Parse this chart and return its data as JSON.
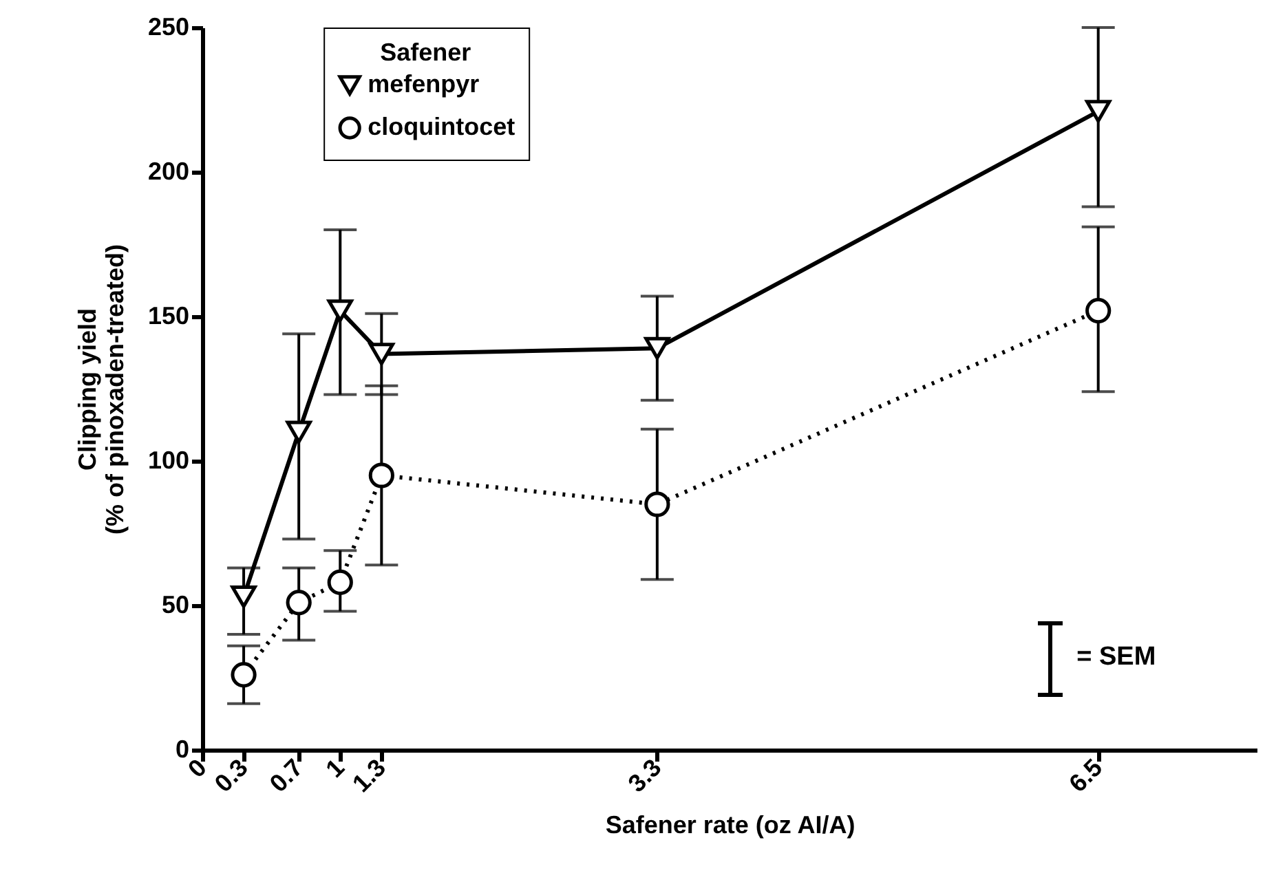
{
  "chart_data": {
    "type": "line",
    "xlabel": "Safener rate (oz AI/A)",
    "ylabel": "Clipping yield\n(% of pinoxaden-treated)",
    "legend_title": "Safener",
    "x": [
      0.3,
      0.7,
      1,
      1.3,
      3.3,
      6.5
    ],
    "series": [
      {
        "name": "mefenpyr",
        "color": "#000000",
        "marker": "triangle",
        "line_style": "solid",
        "values": [
          53,
          110,
          152,
          137,
          139,
          221
        ],
        "errors": [
          [
            40,
            63
          ],
          [
            73,
            144
          ],
          [
            123,
            180
          ],
          [
            123,
            151
          ],
          [
            121,
            157
          ],
          [
            188,
            250
          ]
        ]
      },
      {
        "name": "cloquintocet",
        "color": "#000000",
        "marker": "circle",
        "line_style": "dotted",
        "values": [
          26,
          51,
          58,
          95,
          85,
          152
        ],
        "errors": [
          [
            16,
            36
          ],
          [
            38,
            63
          ],
          [
            48,
            69
          ],
          [
            64,
            126
          ],
          [
            59,
            111
          ],
          [
            124,
            181
          ]
        ]
      }
    ],
    "xlim": [
      0,
      7.65
    ],
    "xticks": [
      0,
      0.3,
      0.7,
      1,
      1.3,
      3.3,
      6.5
    ],
    "ylim": [
      0,
      250
    ],
    "yticks": [
      0,
      50,
      100,
      150,
      200,
      250
    ],
    "grid": false,
    "legend": "top left",
    "annotations": [
      "= SEM"
    ]
  }
}
